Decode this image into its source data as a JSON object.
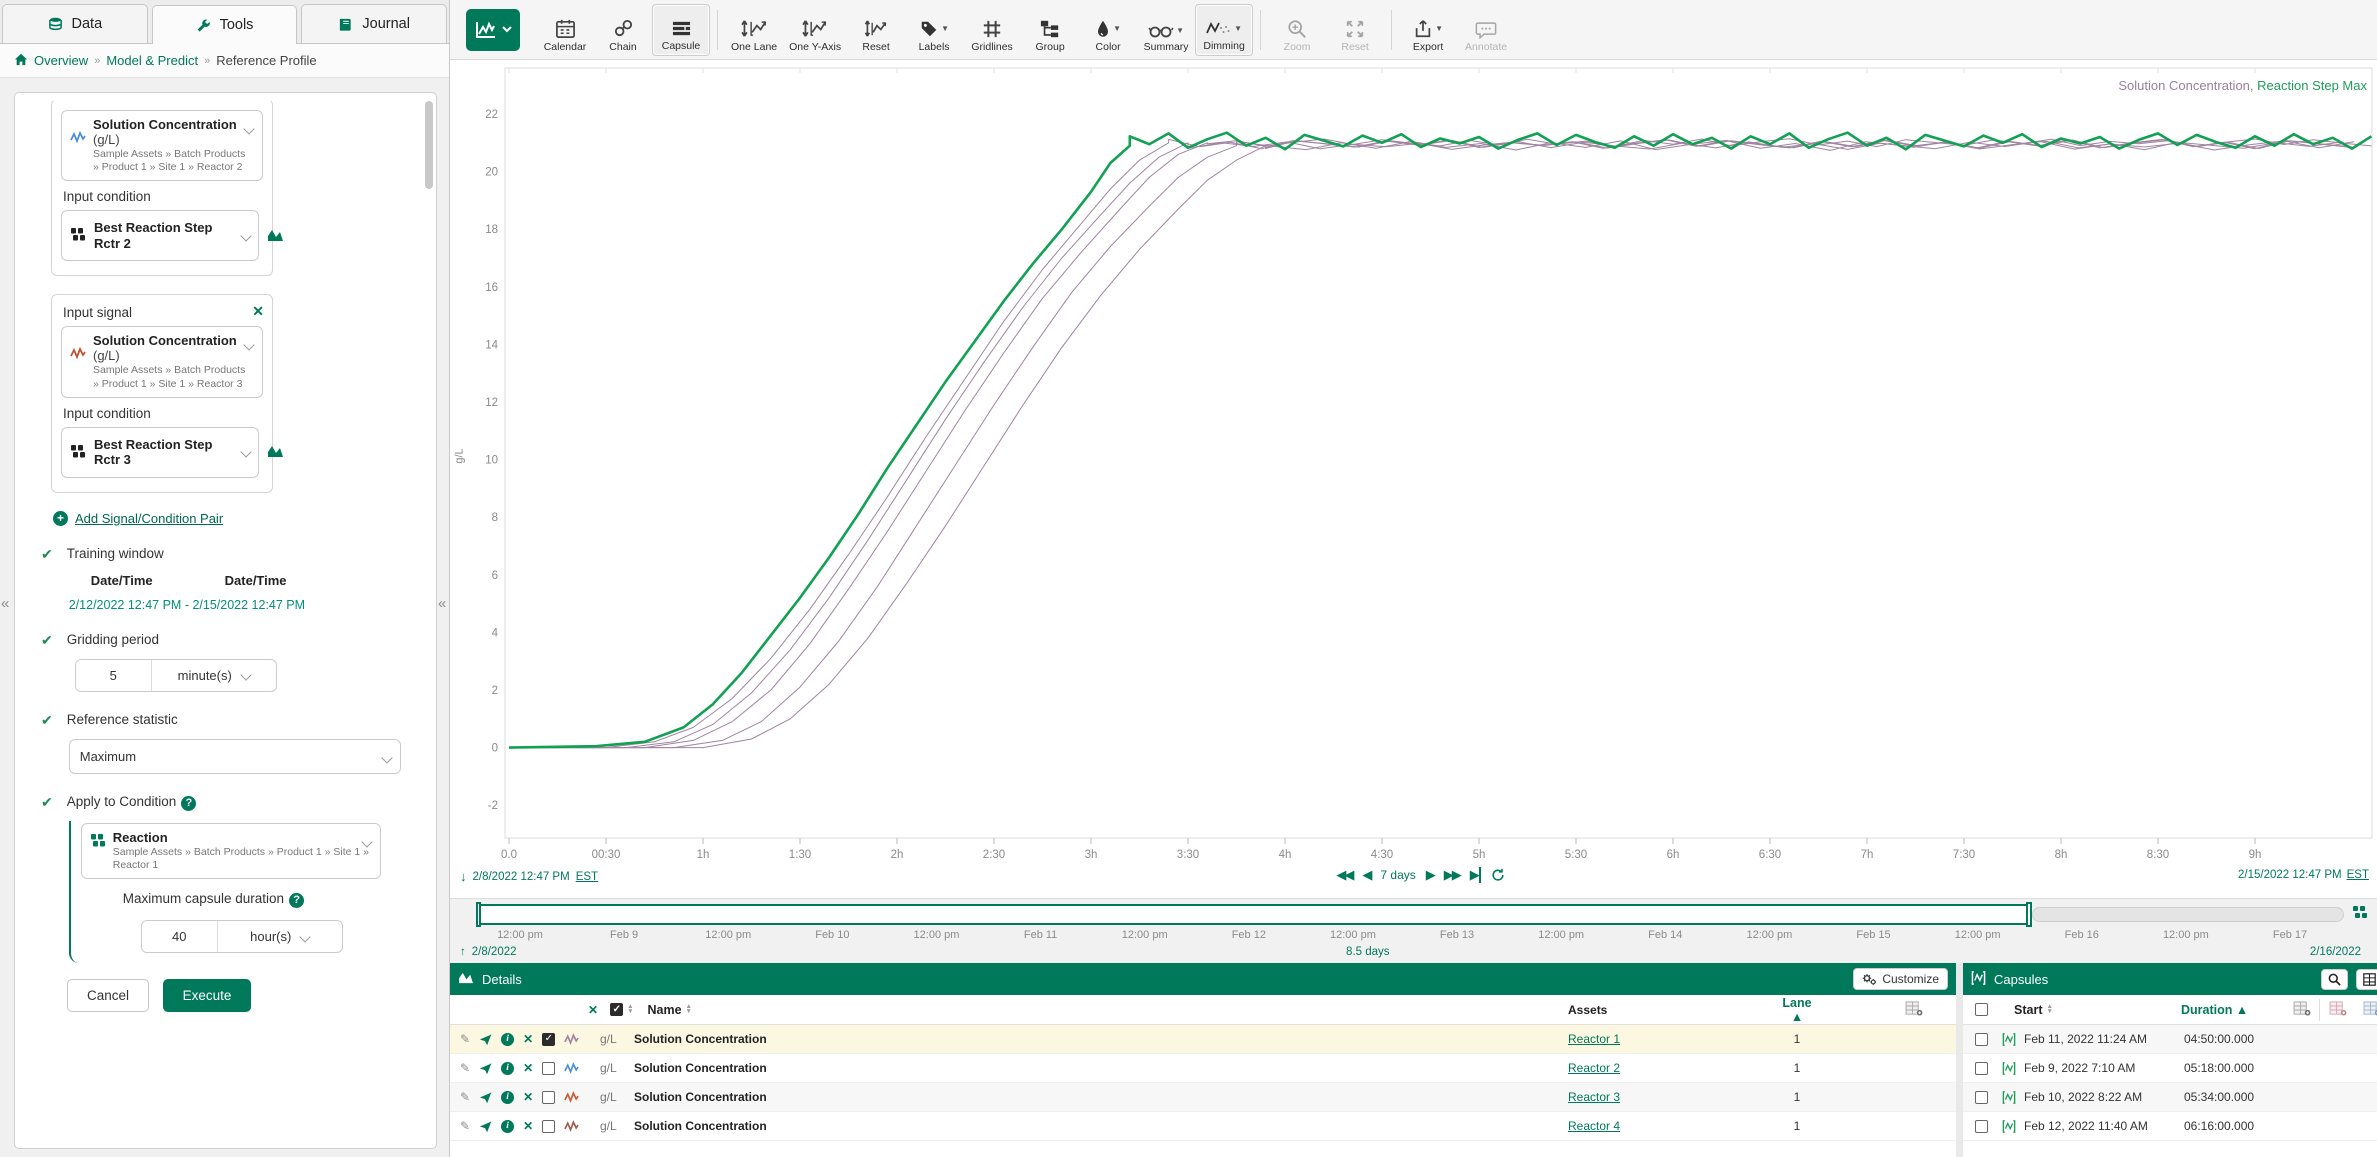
{
  "tabs": {
    "data": "Data",
    "tools": "Tools",
    "journal": "Journal"
  },
  "breadcrumb": {
    "home": "Overview",
    "sep": "»",
    "item1": "Model & Predict",
    "item2": "Reference Profile"
  },
  "form": {
    "pair1": {
      "signal_name": "Solution Concentration",
      "signal_unit": "(g/L)",
      "signal_path": "Sample Assets » Batch Products » Product 1 » Site 1 » Reactor 2",
      "condition_label": "Input condition",
      "condition_value": "Best Reaction Step Rctr 2"
    },
    "pair2": {
      "signal_label": "Input signal",
      "signal_name": "Solution Concentration",
      "signal_unit": "(g/L)",
      "signal_path": "Sample Assets » Batch Products » Product 1 » Site 1 » Reactor 3",
      "condition_label": "Input condition",
      "condition_value": "Best Reaction Step Rctr 3"
    },
    "add_pair": "Add Signal/Condition Pair",
    "training": {
      "label": "Training window",
      "col1": "Date/Time",
      "col2": "Date/Time",
      "start": "2/12/2022 12:47 PM",
      "sep": "-",
      "end": "2/15/2022 12:47 PM"
    },
    "gridding": {
      "label": "Gridding period",
      "value": "5",
      "unit": "minute(s)"
    },
    "refstat": {
      "label": "Reference statistic",
      "value": "Maximum"
    },
    "apply": {
      "label": "Apply to Condition",
      "condition_name": "Reaction",
      "condition_path": "Sample Assets » Batch Products » Product 1 » Site 1 » Reactor 1",
      "maxdur_label": "Maximum capsule duration",
      "maxdur_value": "40",
      "maxdur_unit": "hour(s)"
    },
    "cancel": "Cancel",
    "execute": "Execute"
  },
  "toolbar": {
    "calendar": "Calendar",
    "chain": "Chain",
    "capsule": "Capsule",
    "one_lane": "One Lane",
    "one_y_axis": "One Y-Axis",
    "reset_axis": "Reset",
    "labels": "Labels",
    "gridlines": "Gridlines",
    "group": "Group",
    "color": "Color",
    "summary": "Summary",
    "dimming": "Dimming",
    "zoom": "Zoom",
    "reset_zoom": "Reset",
    "export": "Export",
    "annotate": "Annotate"
  },
  "legend": {
    "signal": "Solution Concentration,",
    "condition": "Reaction Step Max"
  },
  "chart_data": {
    "type": "line",
    "title": "",
    "xlabel": "",
    "ylabel": "g/L",
    "x_unit": "hours since capsule start",
    "xlim": [
      0,
      9.6
    ],
    "ylim": [
      -2,
      22
    ],
    "grid": false,
    "legend_position": "top-right",
    "x_ticks": {
      "positions": [
        0,
        0.5,
        1,
        1.5,
        2,
        2.5,
        3,
        3.5,
        4,
        4.5,
        5,
        5.5,
        6,
        6.5,
        7,
        7.5,
        8,
        8.5,
        9
      ],
      "labels": [
        "0.0",
        "00:30",
        "1h",
        "1:30",
        "2h",
        "2:30",
        "3h",
        "3:30",
        "4h",
        "4:30",
        "5h",
        "5:30",
        "6h",
        "6:30",
        "7h",
        "7:30",
        "8h",
        "8:30",
        "9h"
      ]
    },
    "y_ticks": [
      22,
      20,
      18,
      16,
      14,
      12,
      10,
      8,
      6,
      4,
      2,
      0,
      -2
    ],
    "noise": [
      0.35,
      -0.2,
      0.55,
      -0.45,
      0.15,
      0.6,
      -0.3,
      0.25,
      -0.55,
      0.45,
      0.05,
      -0.35,
      0.4,
      -0.1,
      0.5,
      -0.4,
      0.2,
      -0.15,
      0.3,
      -0.5,
      0.1,
      0.55,
      -0.25,
      0.45,
      -0.05,
      -0.45,
      0.35,
      -0.3,
      0.5,
      -0.2,
      0.25,
      -0.5
    ],
    "series": [
      {
        "name": "Solution Concentration 1",
        "color": "#a184a1",
        "width": 1,
        "rise": [
          [
            0,
            0
          ],
          [
            0.5,
            0
          ],
          [
            0.75,
            0.2
          ],
          [
            0.95,
            0.7
          ],
          [
            1.15,
            1.7
          ],
          [
            1.35,
            3.1
          ],
          [
            1.55,
            4.8
          ],
          [
            1.75,
            6.7
          ],
          [
            1.95,
            8.7
          ],
          [
            2.15,
            10.8
          ],
          [
            2.35,
            12.8
          ],
          [
            2.55,
            14.8
          ],
          [
            2.75,
            16.6
          ],
          [
            2.95,
            18.2
          ],
          [
            3.1,
            19.4
          ],
          [
            3.25,
            20.4
          ],
          [
            3.4,
            21.0
          ]
        ],
        "plateau": {
          "start": 3.4,
          "step": 0.16,
          "level": 20.95,
          "amp": 0.28,
          "phase": 5
        }
      },
      {
        "name": "Solution Concentration 2",
        "color": "#a184a1",
        "width": 1,
        "rise": [
          [
            0,
            0
          ],
          [
            0.6,
            0
          ],
          [
            0.85,
            0.2
          ],
          [
            1.05,
            0.8
          ],
          [
            1.25,
            1.9
          ],
          [
            1.45,
            3.4
          ],
          [
            1.65,
            5.2
          ],
          [
            1.85,
            7.2
          ],
          [
            2.05,
            9.3
          ],
          [
            2.25,
            11.4
          ],
          [
            2.45,
            13.4
          ],
          [
            2.65,
            15.3
          ],
          [
            2.85,
            17.0
          ],
          [
            3.05,
            18.5
          ],
          [
            3.2,
            19.6
          ],
          [
            3.35,
            20.5
          ],
          [
            3.5,
            21.0
          ]
        ],
        "plateau": {
          "start": 3.5,
          "step": 0.17,
          "level": 20.9,
          "amp": 0.26,
          "phase": 11
        }
      },
      {
        "name": "Solution Concentration 3",
        "color": "#a184a1",
        "width": 1,
        "rise": [
          [
            0,
            0
          ],
          [
            0.7,
            0
          ],
          [
            0.95,
            0.25
          ],
          [
            1.15,
            0.9
          ],
          [
            1.35,
            2.0
          ],
          [
            1.55,
            3.6
          ],
          [
            1.75,
            5.5
          ],
          [
            1.95,
            7.5
          ],
          [
            2.15,
            9.6
          ],
          [
            2.35,
            11.7
          ],
          [
            2.55,
            13.7
          ],
          [
            2.75,
            15.6
          ],
          [
            2.95,
            17.2
          ],
          [
            3.15,
            18.7
          ],
          [
            3.3,
            19.8
          ],
          [
            3.45,
            20.6
          ],
          [
            3.6,
            21.0
          ]
        ],
        "plateau": {
          "start": 3.6,
          "step": 0.15,
          "level": 21.0,
          "amp": 0.24,
          "phase": 17
        }
      },
      {
        "name": "Solution Concentration 4",
        "color": "#a184a1",
        "width": 1,
        "rise": [
          [
            0,
            0
          ],
          [
            0.85,
            0
          ],
          [
            1.1,
            0.25
          ],
          [
            1.3,
            0.9
          ],
          [
            1.5,
            2.1
          ],
          [
            1.7,
            3.7
          ],
          [
            1.9,
            5.6
          ],
          [
            2.1,
            7.7
          ],
          [
            2.3,
            9.8
          ],
          [
            2.5,
            11.9
          ],
          [
            2.7,
            13.9
          ],
          [
            2.9,
            15.8
          ],
          [
            3.1,
            17.4
          ],
          [
            3.3,
            18.8
          ],
          [
            3.45,
            19.8
          ],
          [
            3.6,
            20.5
          ],
          [
            3.75,
            20.9
          ]
        ],
        "plateau": {
          "start": 3.75,
          "step": 0.18,
          "level": 20.9,
          "amp": 0.3,
          "phase": 23
        }
      },
      {
        "name": "Solution Concentration 5",
        "color": "#a184a1",
        "width": 1,
        "rise": [
          [
            0,
            0
          ],
          [
            1.0,
            0
          ],
          [
            1.25,
            0.3
          ],
          [
            1.45,
            1.0
          ],
          [
            1.65,
            2.2
          ],
          [
            1.85,
            3.8
          ],
          [
            2.05,
            5.7
          ],
          [
            2.25,
            7.7
          ],
          [
            2.45,
            9.8
          ],
          [
            2.65,
            11.9
          ],
          [
            2.85,
            13.9
          ],
          [
            3.05,
            15.7
          ],
          [
            3.25,
            17.3
          ],
          [
            3.45,
            18.7
          ],
          [
            3.6,
            19.7
          ],
          [
            3.75,
            20.4
          ],
          [
            3.9,
            20.9
          ]
        ],
        "plateau": {
          "start": 3.9,
          "step": 0.16,
          "level": 20.95,
          "amp": 0.27,
          "phase": 8
        }
      },
      {
        "name": "Reaction Step Max",
        "color": "#10a152",
        "width": 2.6,
        "rise": [
          [
            0,
            0
          ],
          [
            0.45,
            0.05
          ],
          [
            0.7,
            0.2
          ],
          [
            0.9,
            0.7
          ],
          [
            1.05,
            1.5
          ],
          [
            1.2,
            2.6
          ],
          [
            1.35,
            3.9
          ],
          [
            1.5,
            5.2
          ],
          [
            1.65,
            6.6
          ],
          [
            1.8,
            8.1
          ],
          [
            1.95,
            9.7
          ],
          [
            2.1,
            11.2
          ],
          [
            2.25,
            12.7
          ],
          [
            2.4,
            14.1
          ],
          [
            2.55,
            15.5
          ],
          [
            2.7,
            16.8
          ],
          [
            2.85,
            18.0
          ],
          [
            3.0,
            19.3
          ],
          [
            3.1,
            20.3
          ],
          [
            3.2,
            20.9
          ]
        ],
        "plateau": {
          "start": 3.2,
          "step": 0.1,
          "level": 21.05,
          "amp": 0.5,
          "phase": 0
        }
      }
    ]
  },
  "xnav": {
    "start_date": "2/8/2022 12:47 PM",
    "start_tz": "EST",
    "range": "7 days",
    "end_date": "2/15/2022 12:47 PM",
    "end_tz": "EST"
  },
  "timebar": {
    "ticks": [
      "12:00 pm",
      "Feb 9",
      "12:00 pm",
      "Feb 10",
      "12:00 pm",
      "Feb 11",
      "12:00 pm",
      "Feb 12",
      "12:00 pm",
      "Feb 13",
      "12:00 pm",
      "Feb 14",
      "12:00 pm",
      "Feb 15",
      "12:00 pm",
      "Feb 16",
      "12:00 pm",
      "Feb 17"
    ],
    "start": "2/8/2022",
    "duration": "8.5 days",
    "end": "2/16/2022"
  },
  "details": {
    "title": "Details",
    "customize": "Customize",
    "name_col": "Name",
    "assets_col": "Assets",
    "lane_col": "Lane",
    "rows": [
      {
        "unit": "g/L",
        "name": "Solution Concentration",
        "asset": "Reactor 1",
        "lane": "1",
        "color": "#a184a1",
        "checked": true
      },
      {
        "unit": "g/L",
        "name": "Solution Concentration",
        "asset": "Reactor 2",
        "lane": "1",
        "color": "#4a90d9",
        "checked": false
      },
      {
        "unit": "g/L",
        "name": "Solution Concentration",
        "asset": "Reactor 3",
        "lane": "1",
        "color": "#c65d32",
        "checked": false
      },
      {
        "unit": "g/L",
        "name": "Solution Concentration",
        "asset": "Reactor 4",
        "lane": "1",
        "color": "#9e5b4e",
        "checked": false
      }
    ]
  },
  "capsules": {
    "title": "Capsules",
    "start_col": "Start",
    "duration_col": "Duration",
    "rows": [
      {
        "start": "Feb 11, 2022 11:24 AM",
        "duration": "04:50:00.000"
      },
      {
        "start": "Feb 9, 2022 7:10 AM",
        "duration": "05:18:00.000"
      },
      {
        "start": "Feb 10, 2022 8:22 AM",
        "duration": "05:34:00.000"
      },
      {
        "start": "Feb 12, 2022 11:40 AM",
        "duration": "06:16:00.000"
      }
    ]
  },
  "colors": {
    "accent": "#00795b",
    "chart_green": "#10a152",
    "chart_purple": "#a184a1",
    "legend_purple": "#9b7f9b",
    "legend_green": "#1e9e5a",
    "row_highlight": "#fcf7e1"
  }
}
